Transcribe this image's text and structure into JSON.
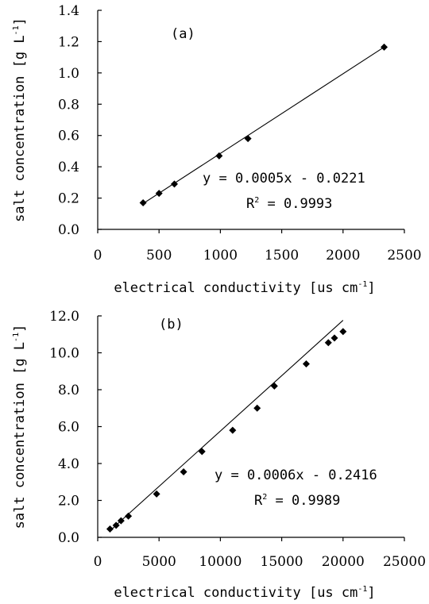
{
  "chart_data": [
    {
      "type": "scatter",
      "panel_label": "(a)",
      "xlabel": {
        "text": "electrical conductivity [us cm",
        "sup": "-1",
        "close": "]"
      },
      "ylabel": {
        "text": "salt concentration [g L",
        "sup": "-1",
        "close": "]"
      },
      "xlim": [
        0,
        2500
      ],
      "ylim": [
        0,
        1.4
      ],
      "xticks": [
        0,
        500,
        1000,
        1500,
        2000,
        2500
      ],
      "xtick_labels": [
        "0",
        "500",
        "1000",
        "1500",
        "2000",
        "2500"
      ],
      "yticks": [
        0,
        0.2,
        0.4,
        0.6,
        0.8,
        1.0,
        1.2,
        1.4
      ],
      "ytick_labels": [
        "0.0",
        "0.2",
        "0.4",
        "0.6",
        "0.8",
        "1.0",
        "1.2",
        "1.4"
      ],
      "points": [
        {
          "x": 370,
          "y": 0.17
        },
        {
          "x": 500,
          "y": 0.23
        },
        {
          "x": 625,
          "y": 0.29
        },
        {
          "x": 990,
          "y": 0.47
        },
        {
          "x": 1225,
          "y": 0.58
        },
        {
          "x": 2335,
          "y": 1.165
        }
      ],
      "trendline": {
        "x": [
          370,
          2335
        ],
        "y": [
          0.165,
          1.165
        ]
      },
      "equation": "y = 0.0005x - 0.0221",
      "r2": {
        "text": "R",
        "sup": "2",
        "value": " = 0.9993"
      },
      "grid": false
    },
    {
      "type": "scatter",
      "panel_label": "(b)",
      "xlabel": {
        "text": "electrical conductivity [us cm",
        "sup": "-1",
        "close": "]"
      },
      "ylabel": {
        "text": "salt concentration [g L",
        "sup": "-1",
        "close": "]"
      },
      "xlim": [
        0,
        25000
      ],
      "ylim": [
        0,
        12
      ],
      "xticks": [
        0,
        5000,
        10000,
        15000,
        20000,
        25000
      ],
      "xtick_labels": [
        "0",
        "5000",
        "10000",
        "15000",
        "20000",
        "25000"
      ],
      "yticks": [
        0,
        2,
        4,
        6,
        8,
        10,
        12
      ],
      "ytick_labels": [
        "0.0",
        "2.0",
        "4.0",
        "6.0",
        "8.0",
        "10.0",
        "12.0"
      ],
      "points": [
        {
          "x": 1000,
          "y": 0.45
        },
        {
          "x": 1500,
          "y": 0.65
        },
        {
          "x": 1900,
          "y": 0.9
        },
        {
          "x": 2500,
          "y": 1.15
        },
        {
          "x": 4800,
          "y": 2.35
        },
        {
          "x": 7000,
          "y": 3.55
        },
        {
          "x": 8500,
          "y": 4.65
        },
        {
          "x": 11000,
          "y": 5.8
        },
        {
          "x": 13000,
          "y": 7.0
        },
        {
          "x": 14400,
          "y": 8.2
        },
        {
          "x": 17000,
          "y": 9.4
        },
        {
          "x": 18800,
          "y": 10.55
        },
        {
          "x": 19300,
          "y": 10.8
        },
        {
          "x": 20000,
          "y": 11.15
        }
      ],
      "trendline": {
        "x": [
          1000,
          20000
        ],
        "y": [
          0.36,
          11.76
        ]
      },
      "equation": "y = 0.0006x - 0.2416",
      "r2": {
        "text": "R",
        "sup": "2",
        "value": " = 0.9989"
      },
      "grid": false
    }
  ]
}
